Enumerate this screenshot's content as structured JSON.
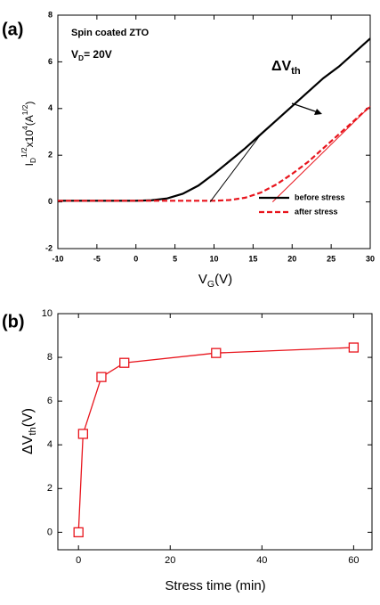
{
  "chart_data": [
    {
      "type": "line",
      "panel_label": "(a)",
      "note": "Spin coated ZTO",
      "drain_voltage": [
        "V",
        "D",
        "= 20V"
      ],
      "shift_label": [
        "ΔV",
        "th"
      ],
      "x_label": [
        "V",
        "G",
        "(V)"
      ],
      "y_label": [
        "I",
        "D",
        "1/2",
        "x10",
        "4",
        "(A",
        "1/2",
        ")"
      ],
      "xlim": [
        -10,
        30
      ],
      "ylim": [
        -2,
        8
      ],
      "xticks": [
        -10,
        -5,
        0,
        5,
        10,
        15,
        20,
        25,
        30
      ],
      "yticks": [
        -2,
        0,
        2,
        4,
        6,
        8
      ],
      "legend": "lower right",
      "series": [
        {
          "name": "before stress",
          "color": "#000000",
          "dash": false,
          "width": 2.2,
          "x": [
            -10,
            0,
            2,
            4,
            6,
            8,
            10,
            12,
            14,
            16,
            18,
            20,
            22,
            24,
            26,
            28,
            30
          ],
          "values": [
            0.05,
            0.05,
            0.07,
            0.15,
            0.35,
            0.7,
            1.2,
            1.75,
            2.3,
            2.9,
            3.5,
            4.1,
            4.7,
            5.3,
            5.8,
            6.4,
            7.0
          ]
        },
        {
          "name": "after stress",
          "color": "#e8141c",
          "dash": true,
          "width": 2.2,
          "x": [
            -10,
            10,
            12,
            14,
            16,
            18,
            20,
            22,
            24,
            26,
            28,
            30
          ],
          "values": [
            0.05,
            0.05,
            0.08,
            0.18,
            0.4,
            0.75,
            1.2,
            1.7,
            2.3,
            2.9,
            3.5,
            4.1
          ]
        },
        {
          "color": "#000000",
          "dash": false,
          "width": 1,
          "x": [
            9.5,
            16
          ],
          "values": [
            0,
            2.9
          ]
        },
        {
          "color": "#e8141c",
          "dash": false,
          "width": 1,
          "x": [
            17.5,
            30
          ],
          "values": [
            0,
            4.1
          ]
        }
      ]
    },
    {
      "type": "line",
      "panel_label": "(b)",
      "x_label": [
        "Stress time (min)"
      ],
      "y_label": [
        "ΔV",
        "th",
        "(V)"
      ],
      "xlim": [
        -4.5,
        64
      ],
      "ylim": [
        -0.8,
        10
      ],
      "xticks": [
        0,
        20,
        40,
        60
      ],
      "yticks": [
        0,
        2,
        4,
        6,
        8,
        10
      ],
      "series": [
        {
          "color": "#e8141c",
          "dash": false,
          "width": 1.3,
          "marker": "square",
          "x": [
            0,
            1,
            5,
            10,
            30,
            60
          ],
          "values": [
            0,
            4.5,
            7.1,
            7.75,
            8.2,
            8.45
          ]
        }
      ]
    }
  ]
}
